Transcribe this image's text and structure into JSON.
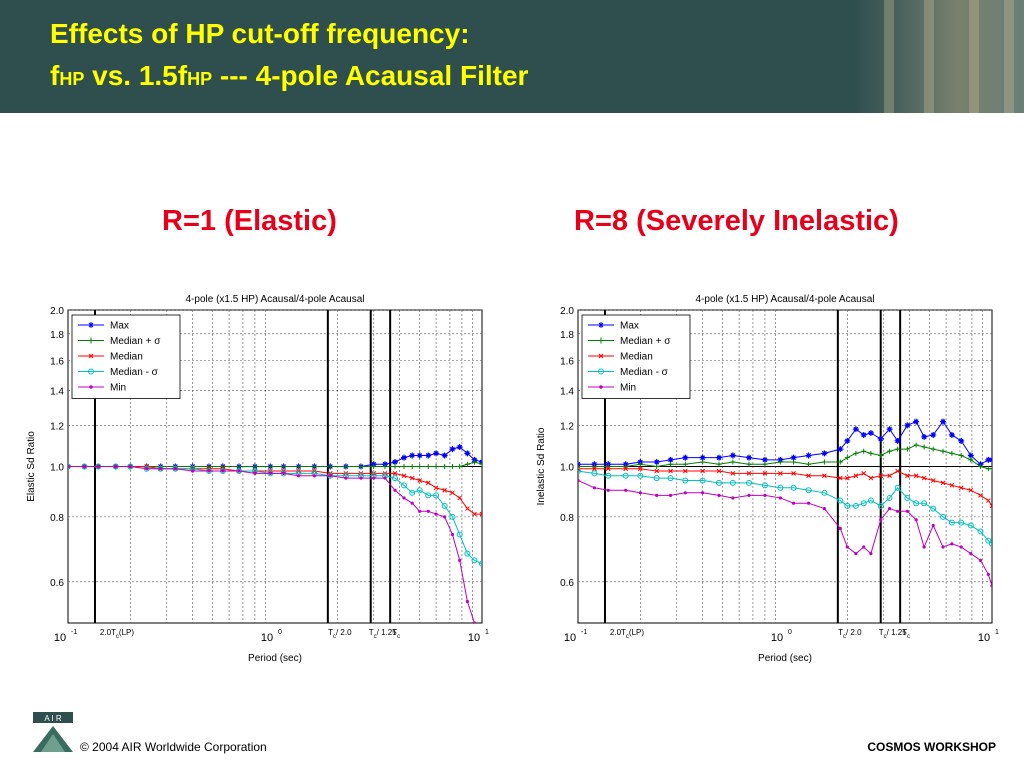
{
  "header": {
    "title_line1": "Effects of HP cut-off frequency:",
    "title_line2_f": "f",
    "title_line2_hp1": "HP",
    "title_line2_mid": " vs. 1.5f",
    "title_line2_hp2": "HP",
    "title_line2_end": " --- 4-pole Acausal Filter"
  },
  "subtitles": {
    "left": "R=1 (Elastic)",
    "right": "R=8 (Severely Inelastic)"
  },
  "footer": {
    "logo_text": "A I R",
    "copyright": "© 2004 AIR Worldwide Corporation",
    "workshop": "COSMOS WORKSHOP"
  },
  "colors": {
    "header_bg": "#2f4f4f",
    "title": "#ffff00",
    "subtitle": "#e8001a",
    "max": "#0000ff",
    "median_plus": "#008000",
    "median": "#ff0000",
    "median_minus": "#00c0c0",
    "min": "#c000c0"
  },
  "chart_data": [
    {
      "type": "line",
      "title": "4-pole (x1.5 HP) Acausal/4-pole Acausal",
      "xlabel": "Period (sec)",
      "ylabel": "Elastic Sd Ratio",
      "xscale": "log",
      "yscale": "log",
      "xlim": [
        0.1,
        10
      ],
      "ylim": [
        0.5,
        2.0
      ],
      "yticks": [
        "2.0",
        "1.8",
        "1.6",
        "1.4",
        "1.2",
        "1.0",
        "0.8",
        "0.6"
      ],
      "ytick_values": [
        2.0,
        1.8,
        1.6,
        1.4,
        1.2,
        1.0,
        0.8,
        0.6
      ],
      "xticks": [
        {
          "base": "10",
          "exp": "-1",
          "value": 0.1
        },
        {
          "base": "10",
          "exp": "0",
          "value": 1
        },
        {
          "base": "10",
          "exp": "1",
          "value": 10
        }
      ],
      "vlines": [
        {
          "value": 0.135,
          "label": "2.0T",
          "sub": "c",
          "suffix": "(LP)"
        },
        {
          "value": 1.8,
          "label": "T",
          "sub": "c",
          "suffix": "/ 2.0"
        },
        {
          "value": 2.9,
          "label": "T",
          "sub": "c",
          "suffix": "/ 1.25"
        },
        {
          "value": 3.6,
          "label": "T",
          "sub": "c",
          "suffix": ""
        }
      ],
      "legend_position": "top-left",
      "grid": true,
      "x": [
        0.1,
        0.12,
        0.14,
        0.17,
        0.2,
        0.24,
        0.28,
        0.33,
        0.4,
        0.48,
        0.56,
        0.67,
        0.8,
        0.95,
        1.1,
        1.3,
        1.55,
        1.85,
        2.2,
        2.6,
        3.0,
        3.4,
        3.8,
        4.2,
        4.6,
        5.0,
        5.5,
        6.0,
        6.6,
        7.2,
        7.8,
        8.5,
        9.2,
        10.0
      ],
      "series": [
        {
          "name": "Max",
          "color": "#0000ff",
          "marker": "star",
          "values": [
            1.0,
            1.0,
            1.0,
            1.0,
            1.0,
            1.0,
            1.0,
            1.0,
            1.0,
            1.0,
            1.0,
            1.0,
            1.0,
            1.0,
            1.0,
            1.0,
            1.0,
            1.0,
            1.0,
            1.0,
            1.01,
            1.01,
            1.02,
            1.04,
            1.05,
            1.05,
            1.05,
            1.06,
            1.05,
            1.08,
            1.09,
            1.06,
            1.03,
            1.02
          ]
        },
        {
          "name": "Median + σ",
          "color": "#008000",
          "marker": "plus",
          "values": [
            1.0,
            1.0,
            1.0,
            1.0,
            1.0,
            1.0,
            1.0,
            1.0,
            1.0,
            1.0,
            1.0,
            1.0,
            1.0,
            1.0,
            1.0,
            1.0,
            1.0,
            1.0,
            1.0,
            1.0,
            1.0,
            1.0,
            1.0,
            1.0,
            1.0,
            1.0,
            1.0,
            1.0,
            1.0,
            1.0,
            1.0,
            1.01,
            1.02,
            1.01
          ]
        },
        {
          "name": "Median",
          "color": "#ff0000",
          "marker": "x",
          "values": [
            1.0,
            1.0,
            1.0,
            1.0,
            1.0,
            1.0,
            0.99,
            0.99,
            0.99,
            0.99,
            0.99,
            0.98,
            0.98,
            0.98,
            0.98,
            0.98,
            0.98,
            0.97,
            0.97,
            0.97,
            0.97,
            0.97,
            0.97,
            0.96,
            0.95,
            0.94,
            0.93,
            0.91,
            0.9,
            0.89,
            0.87,
            0.83,
            0.81,
            0.81
          ]
        },
        {
          "name": "Median - σ",
          "color": "#00c0c0",
          "marker": "circle",
          "values": [
            1.0,
            1.0,
            1.0,
            1.0,
            1.0,
            0.99,
            0.99,
            0.99,
            0.99,
            0.98,
            0.98,
            0.98,
            0.98,
            0.97,
            0.97,
            0.97,
            0.97,
            0.96,
            0.96,
            0.96,
            0.96,
            0.96,
            0.95,
            0.92,
            0.89,
            0.9,
            0.88,
            0.88,
            0.84,
            0.8,
            0.74,
            0.68,
            0.66,
            0.65
          ]
        },
        {
          "name": "Min",
          "color": "#c000c0",
          "marker": "dot",
          "values": [
            1.0,
            1.0,
            1.0,
            1.0,
            1.0,
            0.99,
            0.99,
            0.99,
            0.98,
            0.98,
            0.98,
            0.98,
            0.97,
            0.97,
            0.97,
            0.96,
            0.96,
            0.96,
            0.95,
            0.95,
            0.95,
            0.95,
            0.9,
            0.87,
            0.85,
            0.82,
            0.82,
            0.81,
            0.8,
            0.74,
            0.66,
            0.55,
            0.5,
            0.48
          ]
        }
      ]
    },
    {
      "type": "line",
      "title": "4-pole (x1.5 HP) Acausal/4-pole Acausal",
      "xlabel": "Period (sec)",
      "ylabel": "Inelastic Sd Ratio",
      "xscale": "log",
      "yscale": "log",
      "xlim": [
        0.1,
        10
      ],
      "ylim": [
        0.5,
        2.0
      ],
      "yticks": [
        "2.0",
        "1.8",
        "1.6",
        "1.4",
        "1.2",
        "1.0",
        "0.8",
        "0.6"
      ],
      "ytick_values": [
        2.0,
        1.8,
        1.6,
        1.4,
        1.2,
        1.0,
        0.8,
        0.6
      ],
      "xticks": [
        {
          "base": "10",
          "exp": "-1",
          "value": 0.1
        },
        {
          "base": "10",
          "exp": "0",
          "value": 1
        },
        {
          "base": "10",
          "exp": "1",
          "value": 10
        }
      ],
      "vlines": [
        {
          "value": 0.135,
          "label": "2.0T",
          "sub": "c",
          "suffix": "(LP)"
        },
        {
          "value": 1.8,
          "label": "T",
          "sub": "c",
          "suffix": "/ 2.0"
        },
        {
          "value": 2.9,
          "label": "T",
          "sub": "c",
          "suffix": "/ 1.25"
        },
        {
          "value": 3.6,
          "label": "T",
          "sub": "c",
          "suffix": ""
        }
      ],
      "legend_position": "top-left",
      "grid": true,
      "x": [
        0.1,
        0.12,
        0.14,
        0.17,
        0.2,
        0.24,
        0.28,
        0.33,
        0.4,
        0.48,
        0.56,
        0.67,
        0.8,
        0.95,
        1.1,
        1.3,
        1.55,
        1.85,
        2.0,
        2.2,
        2.4,
        2.6,
        2.9,
        3.2,
        3.5,
        3.9,
        4.3,
        4.7,
        5.2,
        5.8,
        6.4,
        7.1,
        7.9,
        8.8,
        9.6,
        10.0
      ],
      "series": [
        {
          "name": "Max",
          "color": "#0000ff",
          "marker": "star",
          "values": [
            1.01,
            1.01,
            1.01,
            1.01,
            1.02,
            1.02,
            1.03,
            1.04,
            1.04,
            1.04,
            1.05,
            1.04,
            1.03,
            1.03,
            1.04,
            1.05,
            1.06,
            1.08,
            1.12,
            1.18,
            1.15,
            1.16,
            1.13,
            1.18,
            1.12,
            1.2,
            1.22,
            1.14,
            1.15,
            1.22,
            1.15,
            1.12,
            1.05,
            1.01,
            1.03,
            1.03
          ]
        },
        {
          "name": "Median + σ",
          "color": "#008000",
          "marker": "plus",
          "values": [
            1.0,
            1.0,
            1.0,
            1.0,
            1.01,
            1.0,
            1.01,
            1.01,
            1.02,
            1.01,
            1.02,
            1.01,
            1.01,
            1.02,
            1.02,
            1.01,
            1.02,
            1.02,
            1.04,
            1.06,
            1.07,
            1.06,
            1.05,
            1.07,
            1.08,
            1.08,
            1.1,
            1.09,
            1.08,
            1.07,
            1.06,
            1.05,
            1.03,
            1.0,
            0.99,
            0.99
          ]
        },
        {
          "name": "Median",
          "color": "#ff0000",
          "marker": "x",
          "values": [
            0.99,
            0.99,
            0.99,
            0.99,
            0.99,
            0.98,
            0.98,
            0.98,
            0.98,
            0.98,
            0.97,
            0.97,
            0.97,
            0.97,
            0.97,
            0.96,
            0.96,
            0.95,
            0.95,
            0.96,
            0.97,
            0.95,
            0.96,
            0.96,
            0.98,
            0.96,
            0.96,
            0.95,
            0.94,
            0.93,
            0.92,
            0.91,
            0.9,
            0.88,
            0.86,
            0.84
          ]
        },
        {
          "name": "Median - σ",
          "color": "#00c0c0",
          "marker": "circle",
          "values": [
            0.98,
            0.97,
            0.96,
            0.96,
            0.96,
            0.95,
            0.95,
            0.94,
            0.94,
            0.93,
            0.93,
            0.93,
            0.92,
            0.91,
            0.91,
            0.9,
            0.89,
            0.86,
            0.84,
            0.84,
            0.85,
            0.86,
            0.84,
            0.87,
            0.91,
            0.87,
            0.85,
            0.85,
            0.83,
            0.8,
            0.78,
            0.78,
            0.77,
            0.75,
            0.72,
            0.71
          ]
        },
        {
          "name": "Min",
          "color": "#c000c0",
          "marker": "dot",
          "values": [
            0.94,
            0.91,
            0.9,
            0.9,
            0.89,
            0.88,
            0.88,
            0.89,
            0.89,
            0.88,
            0.87,
            0.88,
            0.88,
            0.87,
            0.85,
            0.85,
            0.83,
            0.76,
            0.7,
            0.68,
            0.7,
            0.68,
            0.79,
            0.83,
            0.82,
            0.82,
            0.79,
            0.7,
            0.77,
            0.7,
            0.71,
            0.7,
            0.68,
            0.66,
            0.62,
            0.59
          ]
        }
      ]
    }
  ]
}
